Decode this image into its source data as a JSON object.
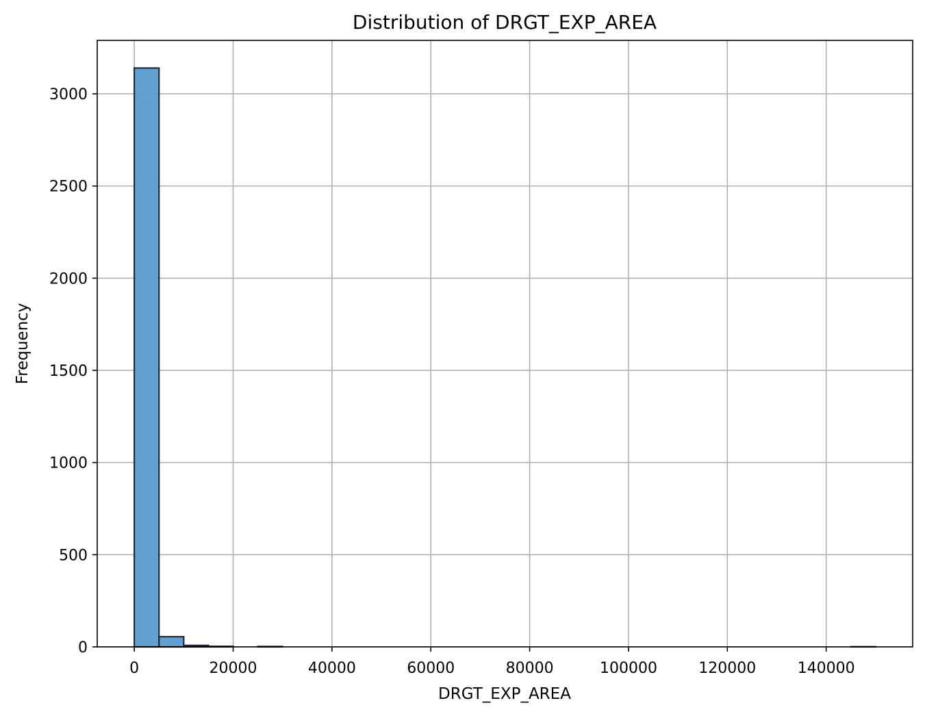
{
  "chart_data": {
    "type": "bar",
    "title": "Distribution of DRGT_EXP_AREA",
    "xlabel": "DRGT_EXP_AREA",
    "ylabel": "Frequency",
    "xlim": [
      -7500,
      157500
    ],
    "ylim": [
      0,
      3290
    ],
    "xticks": [
      0,
      20000,
      40000,
      60000,
      80000,
      100000,
      120000,
      140000
    ],
    "xtick_labels": [
      "0",
      "20000",
      "40000",
      "60000",
      "80000",
      "100000",
      "120000",
      "140000"
    ],
    "yticks": [
      0,
      500,
      1000,
      1500,
      2000,
      2500,
      3000
    ],
    "ytick_labels": [
      "0",
      "500",
      "1000",
      "1500",
      "2000",
      "2500",
      "3000"
    ],
    "grid": true,
    "bin_start": 0,
    "bin_width": 5000,
    "values": [
      3140,
      55,
      8,
      3,
      0,
      2,
      0,
      0,
      0,
      0,
      0,
      0,
      0,
      0,
      0,
      0,
      0,
      0,
      0,
      0,
      0,
      0,
      0,
      0,
      0,
      0,
      0,
      0,
      0,
      1
    ],
    "bar_color": "#5b9bd0",
    "edge_color": "#1f2a36"
  }
}
